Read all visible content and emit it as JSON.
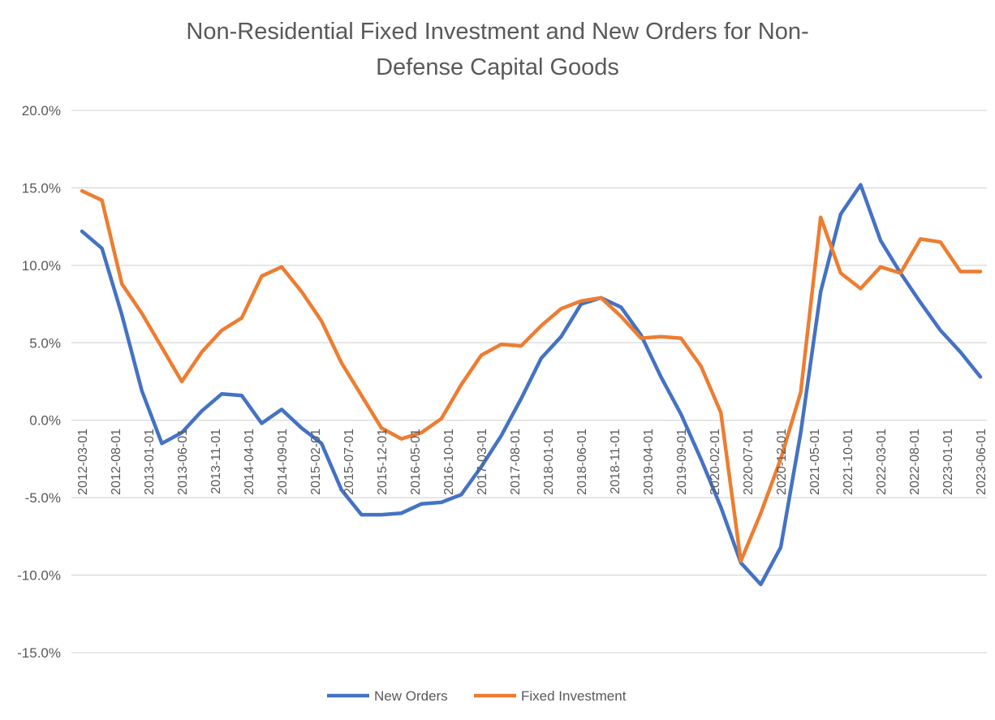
{
  "chart_data": {
    "type": "line",
    "title_lines": [
      "Non-Residential Fixed Investment and New Orders for Non-",
      "Defense Capital Goods"
    ],
    "xlabel": "",
    "ylabel": "",
    "ylim": [
      -15,
      20
    ],
    "yticks": [
      "20.0%",
      "15.0%",
      "10.0%",
      "5.0%",
      "0.0%",
      "-5.0%",
      "-10.0%",
      "-15.0%"
    ],
    "ytick_values": [
      20,
      15,
      10,
      5,
      0,
      -5,
      -10,
      -15
    ],
    "grid": true,
    "legend_position": "bottom",
    "xtick_labels": [
      "2012-03-01",
      "2012-08-01",
      "2013-01-01",
      "2013-06-01",
      "2013-11-01",
      "2014-04-01",
      "2014-09-01",
      "2015-02-01",
      "2015-07-01",
      "2015-12-01",
      "2016-05-01",
      "2016-10-01",
      "2017-03-01",
      "2017-08-01",
      "2018-01-01",
      "2018-06-01",
      "2018-11-01",
      "2019-04-01",
      "2019-09-01",
      "2020-02-01",
      "2020-07-01",
      "2020-12-01",
      "2021-05-01",
      "2021-10-01",
      "2022-03-01",
      "2022-08-01",
      "2023-01-01",
      "2023-06-01"
    ],
    "x": [
      "2012-03-01",
      "2012-06-01",
      "2012-09-01",
      "2012-12-01",
      "2013-03-01",
      "2013-06-01",
      "2013-09-01",
      "2013-12-01",
      "2014-03-01",
      "2014-06-01",
      "2014-09-01",
      "2014-12-01",
      "2015-03-01",
      "2015-06-01",
      "2015-09-01",
      "2015-12-01",
      "2016-03-01",
      "2016-06-01",
      "2016-09-01",
      "2016-12-01",
      "2017-03-01",
      "2017-06-01",
      "2017-09-01",
      "2017-12-01",
      "2018-03-01",
      "2018-06-01",
      "2018-09-01",
      "2018-12-01",
      "2019-03-01",
      "2019-06-01",
      "2019-09-01",
      "2019-12-01",
      "2020-03-01",
      "2020-06-01",
      "2020-09-01",
      "2020-12-01",
      "2021-03-01",
      "2021-06-01",
      "2021-09-01",
      "2021-12-01",
      "2022-03-01",
      "2022-06-01",
      "2022-09-01",
      "2022-12-01",
      "2023-03-01",
      "2023-06-01"
    ],
    "series": [
      {
        "name": "New Orders",
        "color": "#4472C4",
        "values": [
          12.2,
          11.1,
          6.8,
          1.9,
          -1.5,
          -0.8,
          0.6,
          1.7,
          1.6,
          -0.2,
          0.7,
          -0.5,
          -1.5,
          -4.5,
          -6.1,
          -6.1,
          -6.0,
          -5.4,
          -5.3,
          -4.8,
          -3.0,
          -1.0,
          1.4,
          4.0,
          5.4,
          7.5,
          7.9,
          7.3,
          5.5,
          2.8,
          0.4,
          -2.5,
          -5.6,
          -9.2,
          -10.6,
          -8.2,
          -0.8,
          8.3,
          13.3,
          15.2,
          11.6,
          9.5,
          7.6,
          5.8,
          4.4,
          2.8
        ]
      },
      {
        "name": "Fixed Investment",
        "color": "#ED7D31",
        "values": [
          14.8,
          14.2,
          8.8,
          6.9,
          4.7,
          2.5,
          4.4,
          5.8,
          6.6,
          9.3,
          9.9,
          8.3,
          6.4,
          3.7,
          1.6,
          -0.5,
          -1.2,
          -0.8,
          0.1,
          2.3,
          4.2,
          4.9,
          4.8,
          6.1,
          7.2,
          7.7,
          7.9,
          6.7,
          5.3,
          5.4,
          5.3,
          3.5,
          0.5,
          -9.1,
          -6.0,
          -2.5,
          1.8,
          13.1,
          9.5,
          8.5,
          9.9,
          9.5,
          11.7,
          11.5,
          9.6,
          9.6
        ]
      }
    ]
  }
}
